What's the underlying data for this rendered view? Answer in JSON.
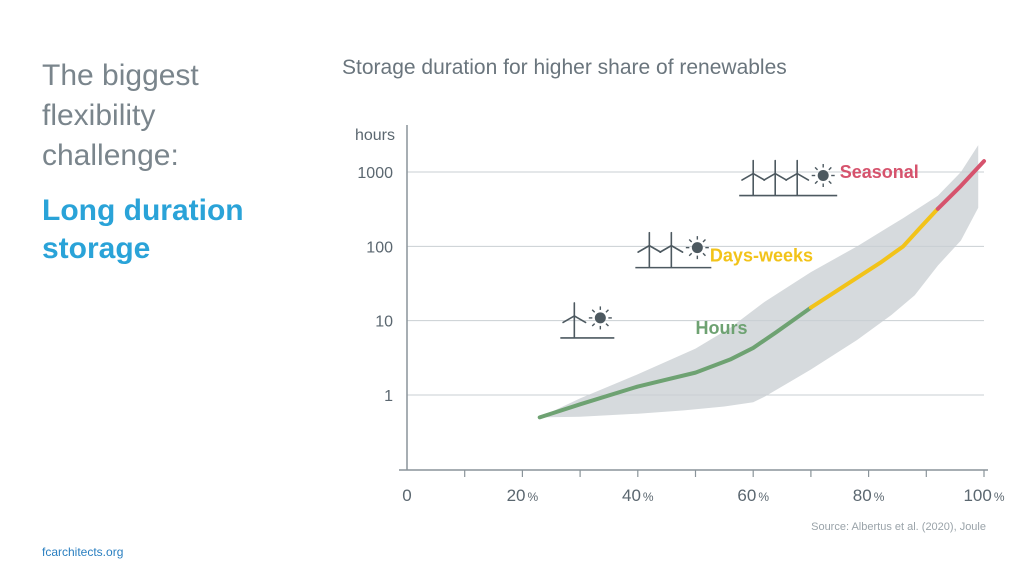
{
  "headline": "The biggest flexibility challenge:",
  "subhead": "Long duration storage",
  "footer": "fcarchitects.org",
  "chart": {
    "title": "Storage duration for higher share of renewables",
    "source": "Source: Albertus et al. (2020), Joule"
  },
  "colors": {
    "hours": "#6ea272",
    "days_weeks": "#f2c319",
    "seasonal": "#d6536d",
    "band": "#d6dadd",
    "axis": "#8a949a",
    "grid": "#c9cfd3",
    "icon": "#4d5960"
  },
  "chart_data": {
    "type": "line",
    "xlabel": "",
    "ylabel": "hours",
    "xscale": "linear",
    "yscale": "log",
    "xlim": [
      0,
      100
    ],
    "ylim": [
      0.1,
      3000
    ],
    "x_ticks": [
      0,
      20,
      40,
      60,
      80,
      100
    ],
    "x_tick_labels": [
      "0",
      "20",
      "40",
      "60",
      "80",
      "100"
    ],
    "x_tick_suffix": [
      "",
      "%",
      "%",
      "%",
      "%",
      "%"
    ],
    "y_ticks": [
      1,
      10,
      100,
      1000
    ],
    "y_tick_labels": [
      "1",
      "10",
      "100",
      "1000"
    ],
    "grid": "horizontal",
    "series": [
      {
        "name": "Hours",
        "color": "#6ea272",
        "points": [
          [
            23,
            0.5
          ],
          [
            30,
            0.75
          ],
          [
            40,
            1.3
          ],
          [
            50,
            2.0
          ],
          [
            56,
            3.0
          ],
          [
            60,
            4.3
          ],
          [
            64,
            7.0
          ],
          [
            70,
            15
          ]
        ]
      },
      {
        "name": "Days-weeks",
        "color": "#f2c319",
        "points": [
          [
            70,
            15
          ],
          [
            76,
            30
          ],
          [
            82,
            60
          ],
          [
            86,
            100
          ],
          [
            89,
            180
          ],
          [
            92,
            320
          ]
        ]
      },
      {
        "name": "Seasonal",
        "color": "#d6536d",
        "points": [
          [
            92,
            320
          ],
          [
            96,
            650
          ],
          [
            100,
            1400
          ]
        ]
      }
    ],
    "band": {
      "upper": [
        [
          23,
          0.5
        ],
        [
          30,
          0.9
        ],
        [
          40,
          1.9
        ],
        [
          50,
          4.2
        ],
        [
          56,
          8
        ],
        [
          62,
          18
        ],
        [
          70,
          45
        ],
        [
          78,
          100
        ],
        [
          86,
          240
        ],
        [
          92,
          480
        ],
        [
          96,
          1000
        ],
        [
          99,
          2300
        ]
      ],
      "lower": [
        [
          99,
          330
        ],
        [
          96,
          120
        ],
        [
          92,
          55
        ],
        [
          88,
          22
        ],
        [
          84,
          12
        ],
        [
          78,
          5.5
        ],
        [
          70,
          2.2
        ],
        [
          62,
          0.95
        ],
        [
          60,
          0.8
        ],
        [
          55,
          0.7
        ],
        [
          48,
          0.62
        ],
        [
          40,
          0.56
        ],
        [
          30,
          0.51
        ],
        [
          23,
          0.5
        ]
      ]
    },
    "annotations": [
      {
        "text": "Hours",
        "x": 50,
        "y": 8,
        "color": "#6ea272"
      },
      {
        "text": "Days-weeks",
        "x": 52.5,
        "y": 75,
        "color": "#f2c319"
      },
      {
        "text": "Seasonal",
        "x": 75,
        "y": 1000,
        "color": "#d6536d"
      }
    ],
    "icons": [
      {
        "name": "one-turbine-sun",
        "turbines": 1,
        "x": 29,
        "y": 8.5
      },
      {
        "name": "two-turbines-sun",
        "turbines": 2,
        "x": 42,
        "y": 75
      },
      {
        "name": "three-turbines-sun",
        "turbines": 3,
        "x": 60,
        "y": 700
      }
    ]
  }
}
